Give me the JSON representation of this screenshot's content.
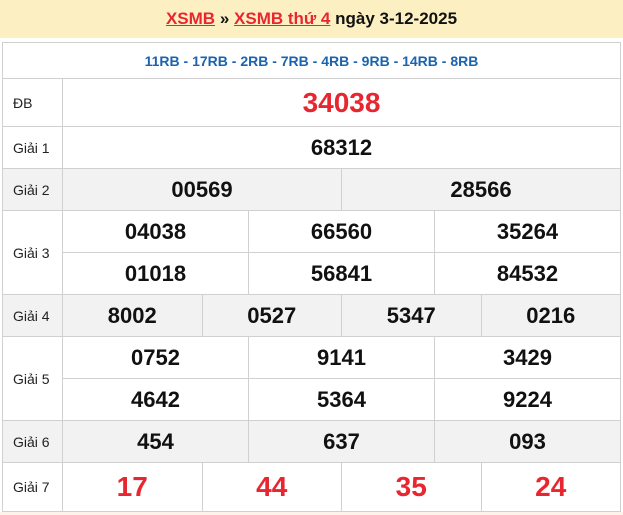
{
  "header": {
    "link1": "XSMB",
    "sep": "»",
    "link2": "XSMB thứ 4",
    "date_text": "ngày 3-12-2025"
  },
  "codes": "11RB - 17RB - 2RB - 7RB - 4RB - 9RB - 14RB - 8RB",
  "prizes": [
    {
      "label": "ĐB",
      "lines": [
        [
          "34038"
        ]
      ]
    },
    {
      "label": "Giải 1",
      "lines": [
        [
          "68312"
        ]
      ]
    },
    {
      "label": "Giải 2",
      "lines": [
        [
          "00569",
          "28566"
        ]
      ]
    },
    {
      "label": "Giải 3",
      "lines": [
        [
          "04038",
          "66560",
          "35264"
        ],
        [
          "01018",
          "56841",
          "84532"
        ]
      ]
    },
    {
      "label": "Giải 4",
      "lines": [
        [
          "8002",
          "0527",
          "5347",
          "0216"
        ]
      ]
    },
    {
      "label": "Giải 5",
      "lines": [
        [
          "0752",
          "9141",
          "3429"
        ],
        [
          "4642",
          "5364",
          "9224"
        ]
      ]
    },
    {
      "label": "Giải 6",
      "lines": [
        [
          "454",
          "637",
          "093"
        ]
      ]
    },
    {
      "label": "Giải 7",
      "lines": [
        [
          "17",
          "44",
          "35",
          "24"
        ]
      ]
    }
  ],
  "colors": {
    "accent_red": "#e8262f",
    "code_blue": "#1a63b0",
    "header_bg": "#fcf0c3"
  }
}
